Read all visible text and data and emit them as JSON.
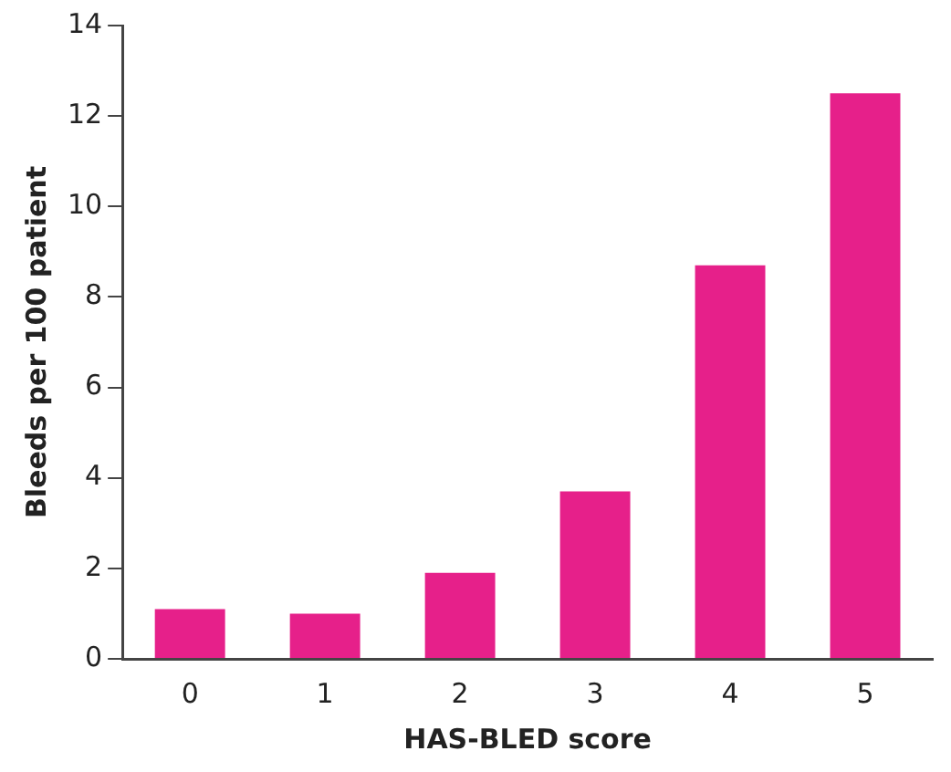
{
  "chart_data": {
    "type": "bar",
    "xlabel": "HAS-BLED score",
    "ylabel": "Bleeds per 100 patient",
    "categories": [
      "0",
      "1",
      "2",
      "3",
      "4",
      "5"
    ],
    "values": [
      1.1,
      1.0,
      1.9,
      3.7,
      8.7,
      12.5
    ],
    "color": "#e6208a",
    "ylim": [
      0,
      14
    ],
    "yticks": [
      0,
      2,
      4,
      6,
      8,
      10,
      12,
      14
    ],
    "grid": false,
    "legend": false
  }
}
